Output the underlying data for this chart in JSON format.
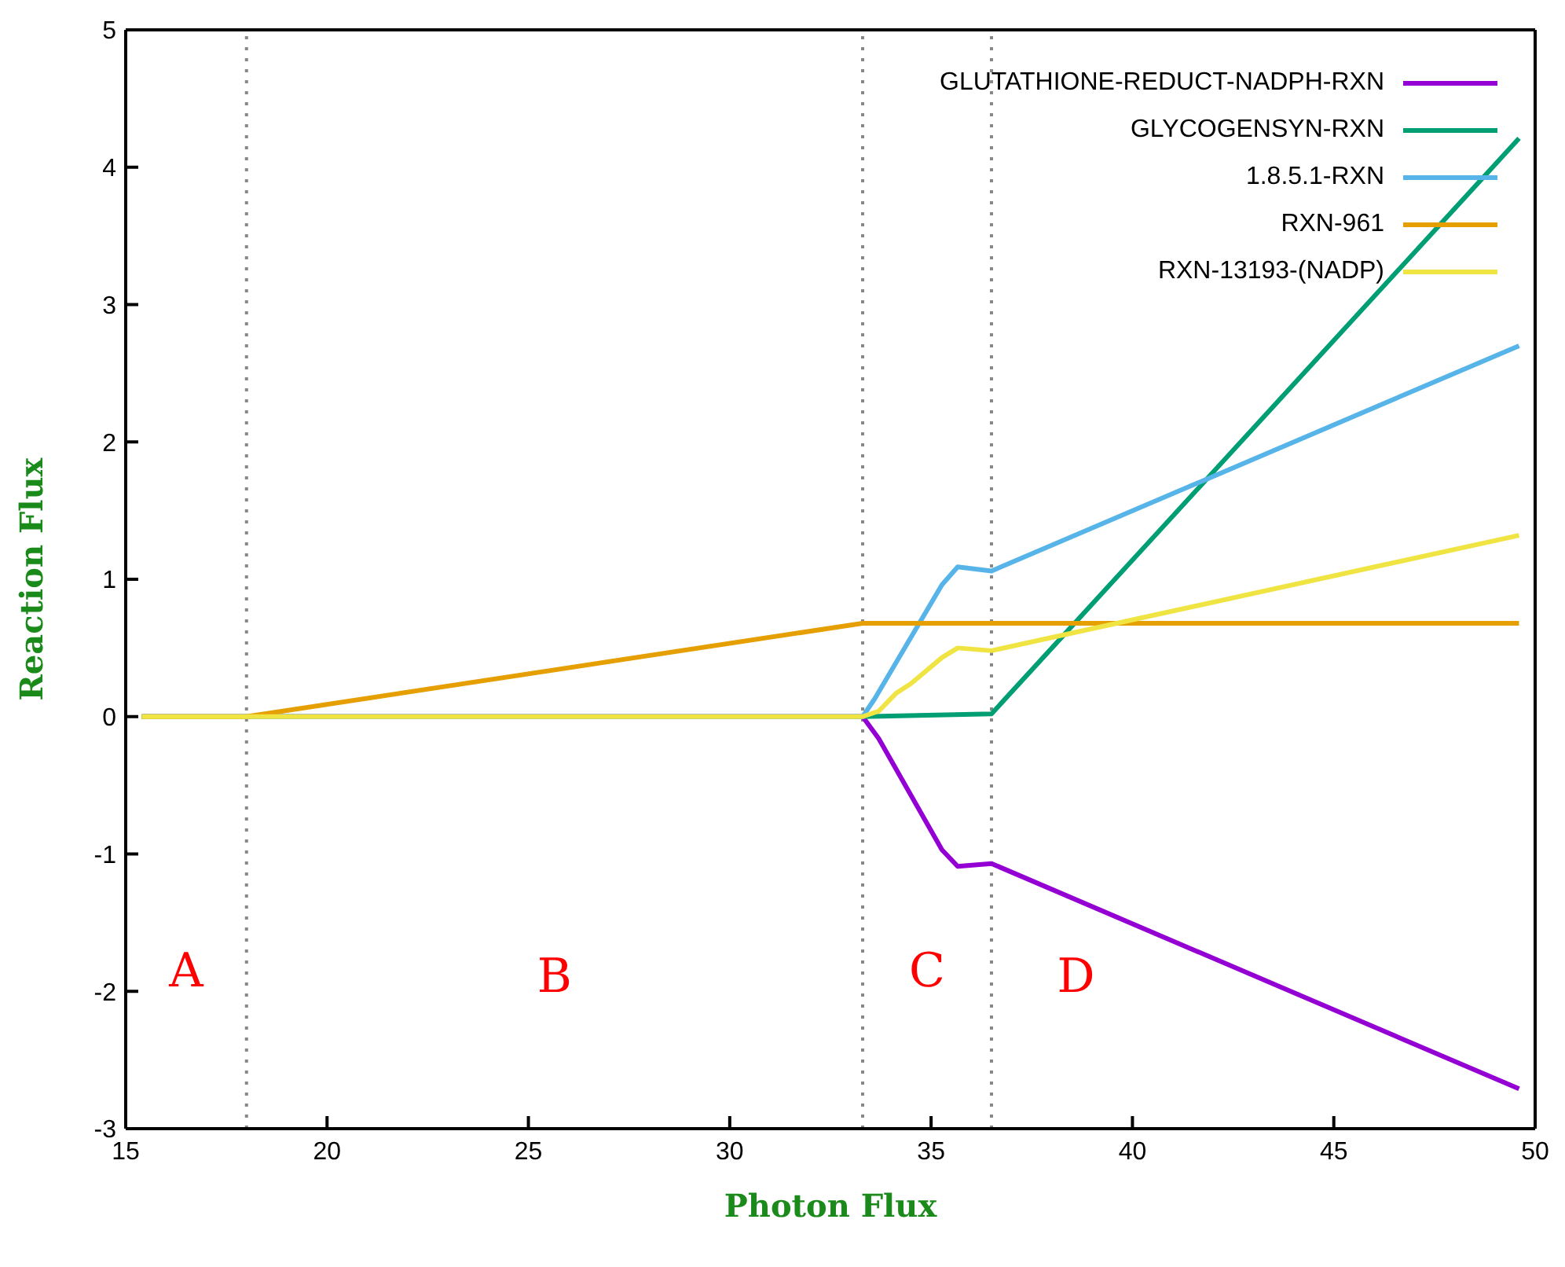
{
  "chart_data": {
    "type": "line",
    "xlabel": "Photon Flux",
    "ylabel": "Reaction Flux",
    "xlim": [
      15,
      50
    ],
    "xticks": [
      15,
      20,
      25,
      30,
      35,
      40,
      45,
      50
    ],
    "ylim": [
      -3,
      5
    ],
    "yticks": [
      -3,
      -2,
      -1,
      0,
      1,
      2,
      3,
      4,
      5
    ],
    "grid": false,
    "legend": "top right",
    "marker": "none",
    "line_style": "solid",
    "series": [
      {
        "name": "GLUTATHIONE-REDUCT-NADPH-RXN",
        "color": "#9400d3",
        "x": [
          15.4,
          33.3,
          33.7,
          35.27,
          35.66,
          36.5,
          49.6
        ],
        "values": [
          0,
          0,
          -0.16,
          -0.97,
          -1.09,
          -1.07,
          -2.71
        ]
      },
      {
        "name": "GLYCOGENSYN-RXN",
        "color": "#009e73",
        "x": [
          15.4,
          33.3,
          36.5,
          49.6
        ],
        "values": [
          0,
          0,
          0.02,
          4.21
        ]
      },
      {
        "name": "1.8.5.1-RXN",
        "color": "#56b4e9",
        "x": [
          15.4,
          33.3,
          33.6,
          35.27,
          35.66,
          36.5,
          49.6
        ],
        "values": [
          0,
          0,
          0.13,
          0.96,
          1.09,
          1.06,
          2.7
        ]
      },
      {
        "name": "RXN-961",
        "color": "#e69f00",
        "x": [
          15.4,
          18,
          33.3,
          49.6
        ],
        "values": [
          0,
          0,
          0.68,
          0.68
        ]
      },
      {
        "name": "RXN-13193-(NADP)",
        "color": "#f0e442",
        "x": [
          15.4,
          33.3,
          33.7,
          34.13,
          34.5,
          35.27,
          35.66,
          36.5,
          49.6
        ],
        "values": [
          0,
          0,
          0.04,
          0.17,
          0.24,
          0.43,
          0.5,
          0.48,
          1.32
        ]
      }
    ],
    "ref_lines": [
      {
        "axis": "x",
        "value": 18,
        "color": "#888888",
        "line_style": "dotted"
      },
      {
        "axis": "x",
        "value": 33.3,
        "color": "#888888",
        "line_style": "dotted"
      },
      {
        "axis": "x",
        "value": 36.5,
        "color": "#888888",
        "line_style": "dotted"
      }
    ],
    "annotations": [
      "A",
      "B",
      "C",
      "D"
    ]
  }
}
